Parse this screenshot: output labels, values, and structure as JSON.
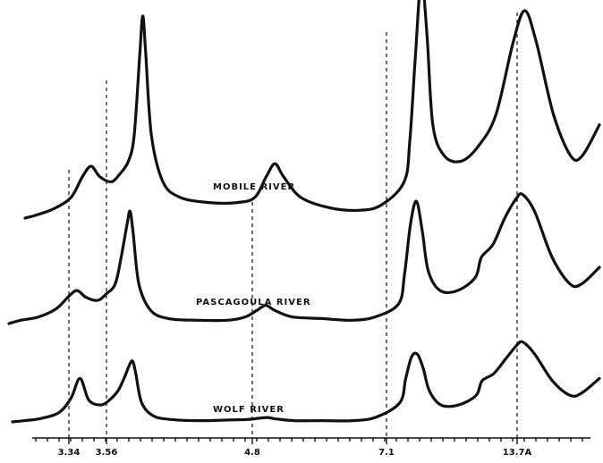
{
  "chart_data": {
    "type": "line",
    "x_unit": "Å d-spacing (reversed axis)",
    "x_ticks": [
      {
        "value": 3.34,
        "label": "3.34"
      },
      {
        "value": 3.56,
        "label": "3.56"
      },
      {
        "value": 4.8,
        "label": "4.8"
      },
      {
        "value": 7.1,
        "label": "7.1"
      },
      {
        "value": 13.7,
        "label": "13.7A"
      }
    ],
    "peak_markers": [
      3.34,
      3.56,
      4.8,
      7.1,
      13.7
    ],
    "grid": false,
    "legend": "none",
    "series": [
      {
        "name": "MOBILE RIVER",
        "points": [
          [
            0.0,
            0.0
          ],
          [
            0.02,
            0.06
          ],
          [
            0.05,
            0.18
          ],
          [
            0.08,
            0.4
          ],
          [
            0.1,
            0.8
          ],
          [
            0.115,
            1.0
          ],
          [
            0.13,
            0.8
          ],
          [
            0.15,
            0.7
          ],
          [
            0.165,
            0.85
          ],
          [
            0.18,
            1.1
          ],
          [
            0.19,
            1.6
          ],
          [
            0.2,
            3.2
          ],
          [
            0.205,
            3.9
          ],
          [
            0.21,
            3.2
          ],
          [
            0.22,
            1.6
          ],
          [
            0.24,
            0.7
          ],
          [
            0.27,
            0.4
          ],
          [
            0.32,
            0.3
          ],
          [
            0.37,
            0.3
          ],
          [
            0.4,
            0.4
          ],
          [
            0.42,
            0.8
          ],
          [
            0.435,
            1.05
          ],
          [
            0.45,
            0.8
          ],
          [
            0.48,
            0.4
          ],
          [
            0.53,
            0.2
          ],
          [
            0.58,
            0.15
          ],
          [
            0.62,
            0.25
          ],
          [
            0.66,
            0.7
          ],
          [
            0.67,
            1.5
          ],
          [
            0.68,
            3.2
          ],
          [
            0.69,
            4.6
          ],
          [
            0.7,
            3.5
          ],
          [
            0.71,
            1.8
          ],
          [
            0.73,
            1.2
          ],
          [
            0.76,
            1.1
          ],
          [
            0.79,
            1.4
          ],
          [
            0.82,
            2.0
          ],
          [
            0.85,
            3.4
          ],
          [
            0.87,
            4.0
          ],
          [
            0.89,
            3.4
          ],
          [
            0.92,
            2.0
          ],
          [
            0.95,
            1.2
          ],
          [
            0.97,
            1.2
          ],
          [
            1.0,
            1.8
          ]
        ]
      },
      {
        "name": "PASCAGOULA RIVER",
        "points": [
          [
            0.0,
            0.0
          ],
          [
            0.02,
            0.1
          ],
          [
            0.05,
            0.2
          ],
          [
            0.08,
            0.45
          ],
          [
            0.1,
            0.8
          ],
          [
            0.115,
            1.0
          ],
          [
            0.13,
            0.8
          ],
          [
            0.15,
            0.7
          ],
          [
            0.165,
            0.9
          ],
          [
            0.18,
            1.2
          ],
          [
            0.19,
            2.0
          ],
          [
            0.2,
            3.0
          ],
          [
            0.205,
            3.4
          ],
          [
            0.21,
            2.8
          ],
          [
            0.22,
            1.2
          ],
          [
            0.24,
            0.4
          ],
          [
            0.27,
            0.15
          ],
          [
            0.32,
            0.1
          ],
          [
            0.37,
            0.1
          ],
          [
            0.4,
            0.2
          ],
          [
            0.42,
            0.4
          ],
          [
            0.435,
            0.55
          ],
          [
            0.45,
            0.4
          ],
          [
            0.48,
            0.2
          ],
          [
            0.53,
            0.15
          ],
          [
            0.58,
            0.1
          ],
          [
            0.62,
            0.2
          ],
          [
            0.66,
            0.6
          ],
          [
            0.67,
            1.5
          ],
          [
            0.68,
            3.0
          ],
          [
            0.69,
            3.7
          ],
          [
            0.7,
            2.8
          ],
          [
            0.71,
            1.6
          ],
          [
            0.73,
            1.0
          ],
          [
            0.76,
            1.0
          ],
          [
            0.79,
            1.4
          ],
          [
            0.8,
            2.0
          ],
          [
            0.82,
            2.4
          ],
          [
            0.84,
            3.2
          ],
          [
            0.86,
            3.8
          ],
          [
            0.87,
            3.9
          ],
          [
            0.89,
            3.4
          ],
          [
            0.92,
            2.0
          ],
          [
            0.95,
            1.2
          ],
          [
            0.97,
            1.2
          ],
          [
            1.0,
            1.7
          ]
        ]
      },
      {
        "name": "WOLF RIVER",
        "points": [
          [
            0.0,
            0.0
          ],
          [
            0.02,
            0.05
          ],
          [
            0.05,
            0.15
          ],
          [
            0.08,
            0.4
          ],
          [
            0.1,
            1.0
          ],
          [
            0.115,
            1.8
          ],
          [
            0.13,
            0.9
          ],
          [
            0.15,
            0.7
          ],
          [
            0.165,
            0.9
          ],
          [
            0.18,
            1.3
          ],
          [
            0.19,
            1.8
          ],
          [
            0.2,
            2.4
          ],
          [
            0.205,
            2.5
          ],
          [
            0.21,
            2.0
          ],
          [
            0.22,
            0.8
          ],
          [
            0.24,
            0.25
          ],
          [
            0.27,
            0.1
          ],
          [
            0.32,
            0.05
          ],
          [
            0.37,
            0.08
          ],
          [
            0.4,
            0.1
          ],
          [
            0.42,
            0.15
          ],
          [
            0.435,
            0.18
          ],
          [
            0.45,
            0.12
          ],
          [
            0.48,
            0.05
          ],
          [
            0.53,
            0.05
          ],
          [
            0.58,
            0.05
          ],
          [
            0.62,
            0.2
          ],
          [
            0.66,
            0.8
          ],
          [
            0.67,
            1.8
          ],
          [
            0.68,
            2.7
          ],
          [
            0.69,
            2.8
          ],
          [
            0.7,
            2.2
          ],
          [
            0.71,
            1.3
          ],
          [
            0.73,
            0.7
          ],
          [
            0.76,
            0.7
          ],
          [
            0.79,
            1.1
          ],
          [
            0.8,
            1.7
          ],
          [
            0.82,
            2.0
          ],
          [
            0.84,
            2.6
          ],
          [
            0.86,
            3.2
          ],
          [
            0.87,
            3.3
          ],
          [
            0.89,
            2.8
          ],
          [
            0.92,
            1.7
          ],
          [
            0.95,
            1.1
          ],
          [
            0.97,
            1.2
          ],
          [
            1.0,
            1.8
          ]
        ]
      }
    ]
  }
}
